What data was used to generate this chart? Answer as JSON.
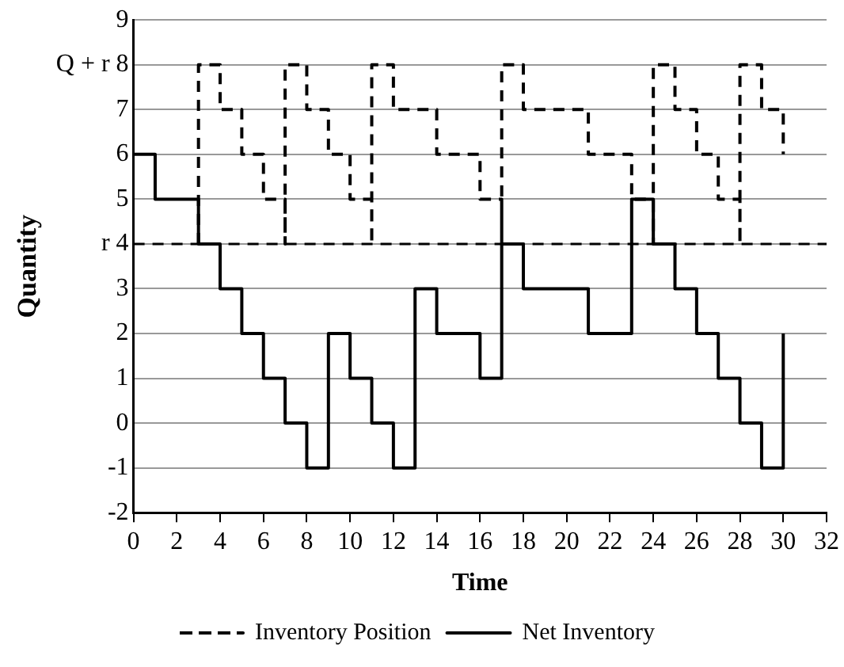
{
  "chart_data": {
    "type": "step",
    "xlabel": "Time",
    "ylabel": "Quantity",
    "xlim": [
      0,
      32
    ],
    "xticks": [
      0,
      2,
      4,
      6,
      8,
      10,
      12,
      14,
      16,
      18,
      20,
      22,
      24,
      26,
      28,
      30,
      32
    ],
    "ylim": [
      -2,
      9
    ],
    "yticks": [
      -2,
      -1,
      0,
      1,
      2,
      3,
      {
        "value": 4,
        "label": "r 4"
      },
      5,
      6,
      7,
      {
        "value": 8,
        "label": "Q + r 8"
      },
      9
    ],
    "grid": "y",
    "legend": "bottom",
    "marker": "none",
    "ref_lines": [
      {
        "axis": "y",
        "value": 4,
        "color": "#000000",
        "line_style": "dashed"
      }
    ],
    "series": [
      {
        "name": "Inventory Position",
        "color": "#000000",
        "line_style": "dashed",
        "x": [
          3,
          3,
          4,
          5,
          6,
          7,
          7,
          8,
          9,
          10,
          11,
          11,
          12,
          14,
          16,
          17,
          17,
          18,
          21,
          23,
          24,
          24,
          25,
          26,
          27,
          28,
          28,
          29,
          30
        ],
        "values": [
          4,
          8,
          7,
          6,
          5,
          4,
          8,
          7,
          6,
          5,
          4,
          8,
          7,
          6,
          5,
          4,
          8,
          7,
          6,
          5,
          4,
          8,
          7,
          6,
          5,
          4,
          8,
          7,
          6
        ]
      },
      {
        "name": "Net Inventory",
        "color": "#000000",
        "line_style": "solid",
        "x": [
          0,
          1,
          3,
          4,
          5,
          6,
          7,
          8,
          9,
          10,
          11,
          12,
          13,
          14,
          16,
          17,
          18,
          21,
          23,
          24,
          25,
          26,
          27,
          28,
          29,
          30
        ],
        "values": [
          6,
          5,
          4,
          3,
          2,
          1,
          0,
          -1,
          2,
          1,
          0,
          -1,
          3,
          2,
          1,
          4,
          3,
          2,
          5,
          4,
          3,
          2,
          1,
          0,
          -1,
          2
        ]
      }
    ]
  }
}
